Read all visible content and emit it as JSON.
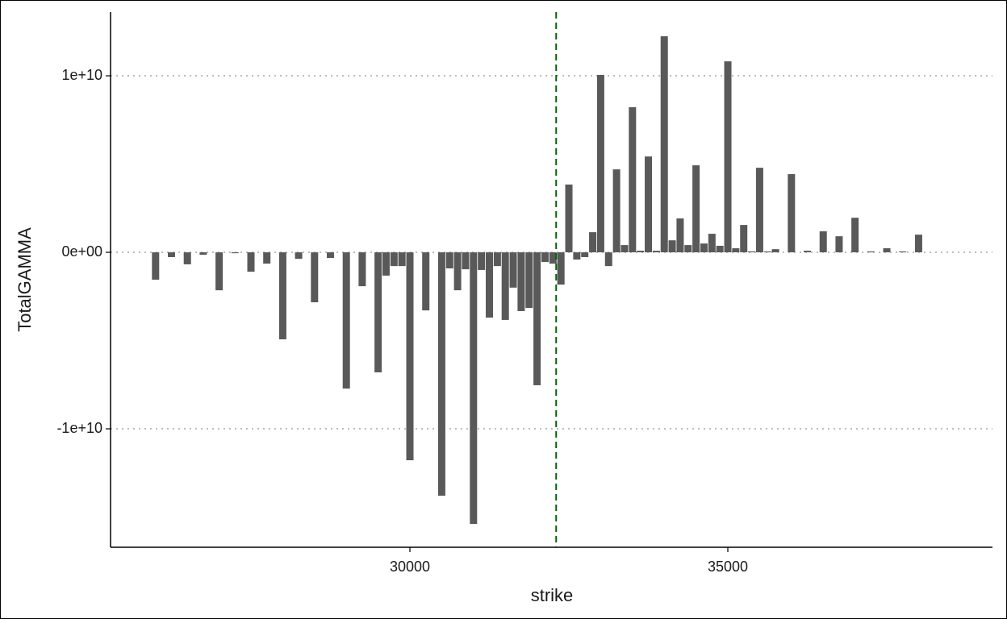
{
  "chart_data": {
    "type": "bar",
    "x_label": "strike",
    "y_label": "TotalGAMMA",
    "x": [
      26000,
      26250,
      26500,
      26750,
      27000,
      27250,
      27500,
      27750,
      28000,
      28250,
      28500,
      28750,
      29000,
      29250,
      29500,
      29625,
      29750,
      29875,
      30000,
      30250,
      30500,
      30625,
      30750,
      30875,
      31000,
      31125,
      31250,
      31375,
      31500,
      31625,
      31750,
      31875,
      32000,
      32125,
      32250,
      32375,
      32500,
      32625,
      32750,
      32875,
      33000,
      33125,
      33250,
      33375,
      33500,
      33625,
      33750,
      33875,
      34000,
      34125,
      34250,
      34375,
      34500,
      34625,
      34750,
      34875,
      35000,
      35125,
      35250,
      35375,
      35500,
      35625,
      35750,
      36000,
      36250,
      36500,
      36750,
      37000,
      37250,
      37500,
      37750,
      38000
    ],
    "values": [
      -1550000000,
      -270000000,
      -680000000,
      -140000000,
      -2150000000,
      -50000000,
      -1100000000,
      -640000000,
      -4930000000,
      -370000000,
      -2830000000,
      -320000000,
      -7720000000,
      -1920000000,
      -6800000000,
      -1320000000,
      -780000000,
      -780000000,
      -11780000000,
      -3290000000,
      -13790000000,
      -910000000,
      -2150000000,
      -960000000,
      -15390000000,
      -1000000000,
      -3700000000,
      -780000000,
      -3830000000,
      -2000000000,
      -3330000000,
      -3150000000,
      -7530000000,
      -550000000,
      -640000000,
      -1830000000,
      3840000000,
      -410000000,
      -270000000,
      1140000000,
      10050000000,
      -780000000,
      4700000000,
      410000000,
      8220000000,
      90000000,
      5430000000,
      90000000,
      12240000000,
      680000000,
      1920000000,
      410000000,
      4930000000,
      500000000,
      1050000000,
      370000000,
      10820000000,
      230000000,
      1550000000,
      50000000,
      4790000000,
      50000000,
      180000000,
      4430000000,
      90000000,
      1190000000,
      910000000,
      1960000000,
      50000000,
      230000000,
      50000000,
      1000000000
    ],
    "color": "#595959",
    "xlim": [
      25292,
      39162
    ],
    "xticks": [
      30000,
      35000
    ],
    "ylim": [
      -16710000000,
      13610000000
    ],
    "yticks": [
      {
        "value": 10000000000,
        "label": "1e+10"
      },
      {
        "value": 0,
        "label": "0e+00"
      },
      {
        "value": -10000000000,
        "label": "-1e+10"
      }
    ],
    "grid": true,
    "vline": {
      "x": 32300,
      "color": "#006400"
    }
  }
}
